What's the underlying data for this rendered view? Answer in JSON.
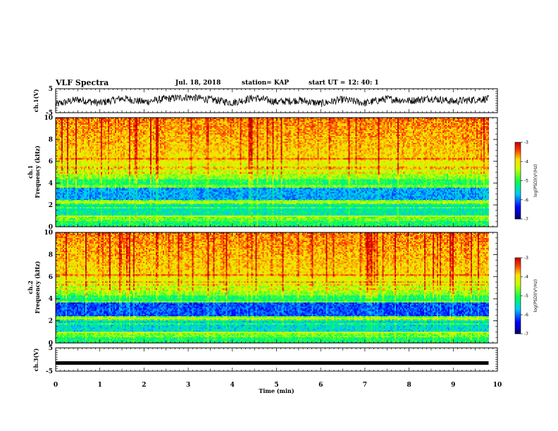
{
  "header": {
    "title": "VLF Spectra",
    "date": "Jul. 18, 2018",
    "station": "station= KAP",
    "start": "start UT = 12: 40: 1"
  },
  "colors": {
    "low": "#00008b",
    "mid_low": "#00e0ff",
    "mid": "#00ff44",
    "mid_high": "#ffff00",
    "high": "#ff2000"
  },
  "chart_data": [
    {
      "type": "line",
      "panel": "ch.1 waveform",
      "ylabel": "ch.1(V)",
      "ylim": [
        -5,
        5
      ],
      "yticks": [
        "5",
        "-5"
      ],
      "x": [
        0,
        0.5,
        1,
        1.5,
        2,
        2.5,
        3,
        3.5,
        4,
        4.5,
        5,
        5.5,
        6,
        6.5,
        7,
        7.5,
        8,
        8.5,
        9,
        9.5,
        9.8
      ],
      "y": [
        -1.5,
        0.5,
        -1.0,
        1.0,
        -0.5,
        0.8,
        1.5,
        0.5,
        -0.8,
        1.2,
        -0.5,
        0.2,
        -1.2,
        0.5,
        -1.0,
        0.8,
        0.0,
        1.0,
        -0.3,
        0.5,
        0.8
      ]
    },
    {
      "type": "heatmap",
      "panel": "ch.1 spectrogram",
      "ylabel": "ch.1 Frequency (kHz)",
      "ylim": [
        0,
        10
      ],
      "yticks": [
        "0",
        "2",
        "4",
        "6",
        "8",
        "10"
      ],
      "xlim": [
        0,
        10
      ],
      "colorbar_label": "log(PSD)(V²/Hz)",
      "colorbar_ticks": [
        "-3",
        "-4",
        "-5",
        "-6",
        "-7"
      ],
      "zlim": [
        -7,
        -3
      ]
    },
    {
      "type": "heatmap",
      "panel": "ch.2 spectrogram",
      "ylabel": "ch.2 Frequency (kHz)",
      "ylim": [
        0,
        10
      ],
      "yticks": [
        "0",
        "2",
        "4",
        "6",
        "8",
        "10"
      ],
      "xlim": [
        0,
        10
      ],
      "colorbar_label": "log(PSD)(V²/Hz)",
      "colorbar_ticks": [
        "-3",
        "-4",
        "-5",
        "-6",
        "-7"
      ],
      "zlim": [
        -7,
        -3
      ]
    },
    {
      "type": "line",
      "panel": "ch.3 waveform",
      "ylabel": "ch.3(V)",
      "ylim": [
        -5,
        5
      ],
      "yticks": [
        "5",
        "-5"
      ],
      "x": [
        0,
        9.8
      ],
      "y": [
        -1.5,
        -1.5
      ]
    }
  ],
  "xaxis": {
    "label": "Time (min)",
    "ticks": [
      "0",
      "1",
      "2",
      "3",
      "4",
      "5",
      "6",
      "7",
      "8",
      "9",
      "10"
    ]
  }
}
